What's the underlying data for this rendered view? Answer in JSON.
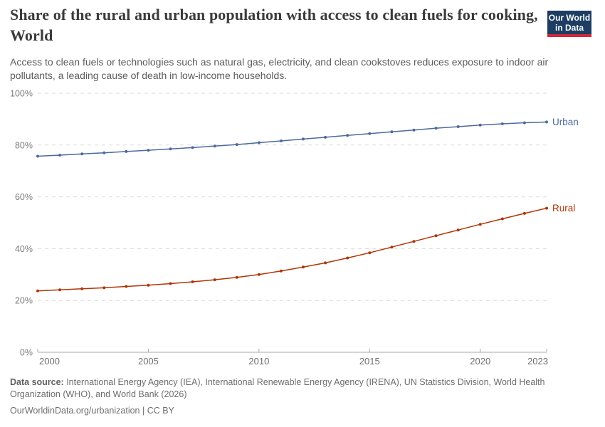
{
  "logo": {
    "line1": "Our World",
    "line2": "in Data"
  },
  "header": {
    "title": "Share of the rural and urban population with access to clean fuels for cooking, World",
    "subtitle": "Access to clean fuels or technologies such as natural gas, electricity, and clean cookstoves reduces exposure to indoor air pollutants, a leading cause of death in low-income households."
  },
  "chart_data": {
    "type": "line",
    "title": "Share of the rural and urban population with access to clean fuels for cooking, World",
    "x": [
      2000,
      2001,
      2002,
      2003,
      2004,
      2005,
      2006,
      2007,
      2008,
      2009,
      2010,
      2011,
      2012,
      2013,
      2014,
      2015,
      2016,
      2017,
      2018,
      2019,
      2020,
      2021,
      2022,
      2023
    ],
    "series": [
      {
        "name": "Urban",
        "color": "#4C6A9C",
        "values": [
          75.7,
          76.1,
          76.6,
          77.0,
          77.5,
          78.0,
          78.5,
          79.0,
          79.6,
          80.2,
          80.9,
          81.6,
          82.3,
          83.0,
          83.7,
          84.4,
          85.1,
          85.8,
          86.5,
          87.1,
          87.7,
          88.2,
          88.6,
          88.9
        ]
      },
      {
        "name": "Rural",
        "color": "#B13507",
        "values": [
          23.7,
          24.1,
          24.5,
          24.9,
          25.4,
          25.9,
          26.5,
          27.2,
          28.0,
          28.9,
          30.0,
          31.4,
          32.9,
          34.5,
          36.4,
          38.4,
          40.6,
          42.8,
          45.0,
          47.2,
          49.4,
          51.5,
          53.6,
          55.6
        ]
      }
    ],
    "xlim": [
      2000,
      2023
    ],
    "ylim": [
      0,
      100
    ],
    "yticks": [
      0,
      20,
      40,
      60,
      80,
      100
    ],
    "ytick_suffix": "%",
    "xticks": [
      2000,
      2005,
      2010,
      2015,
      2020,
      2023
    ],
    "grid": "dashed-horizontal",
    "legend": "line-end-labels",
    "marker": "dot-every-year"
  },
  "footer": {
    "source_label": "Data source:",
    "source_text": " International Energy Agency (IEA), International Renewable Energy Agency (IRENA), UN Statistics Division, World Health Organization (WHO), and World Bank (2026)",
    "license_line": "OurWorldinData.org/urbanization | CC BY"
  },
  "colors": {
    "urban": "#4C6A9C",
    "rural": "#B13507",
    "logo_bg": "#1d3d63",
    "logo_stripe": "#d0293b",
    "grid": "#d9d9d9",
    "axis": "#a8a8a8",
    "tick_label": "#7d7d7d"
  }
}
